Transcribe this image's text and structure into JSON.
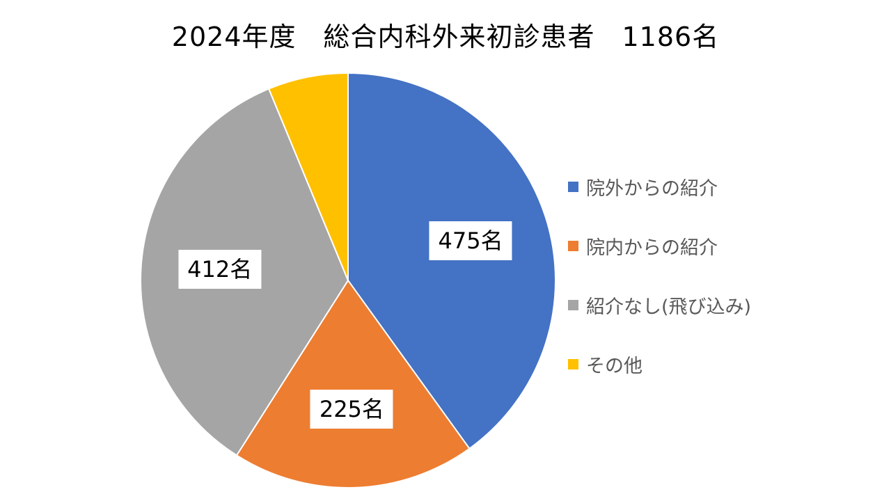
{
  "chart_data": {
    "type": "pie",
    "title": "2024年度　総合内科外来初診患者　1186名",
    "categories": [
      "院外からの紹介",
      "院内からの紹介",
      "紹介なし(飛び込み)",
      "その他"
    ],
    "values": [
      475,
      225,
      412,
      74
    ],
    "colors": [
      "#4472C4",
      "#ED7D31",
      "#A5A5A5",
      "#FFC000"
    ],
    "data_labels": [
      "475名",
      "225名",
      "412名",
      ""
    ],
    "legend_position": "right",
    "start_angle": "12 o'clock",
    "direction": "clockwise"
  }
}
